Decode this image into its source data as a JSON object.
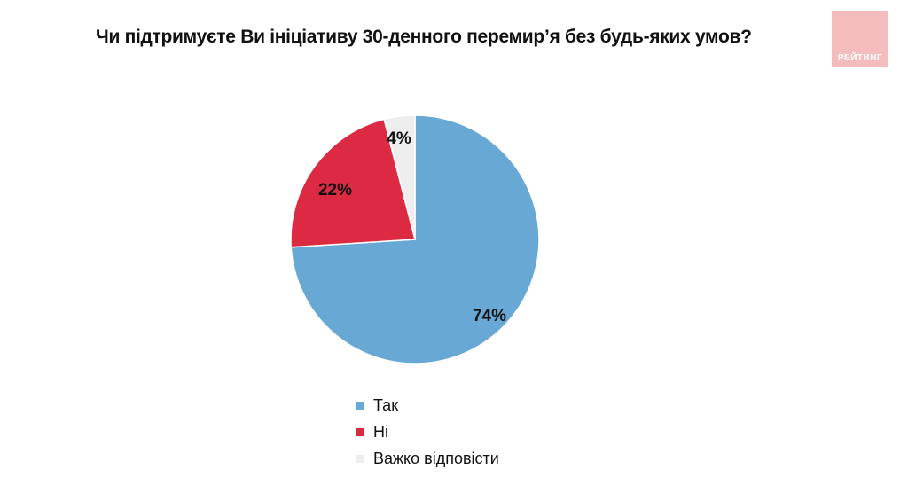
{
  "logo": {
    "text": "РЕЙТИНГ",
    "color": "#f4bcbc"
  },
  "chart_data": {
    "type": "pie",
    "title": "Чи підтримуєте Ви ініціативу 30-денного перемир’я без будь-яких умов?",
    "slices": [
      {
        "label": "Так",
        "value": 74,
        "display": "74%",
        "color": "#67a8d4"
      },
      {
        "label": "Ні",
        "value": 22,
        "display": "22%",
        "color": "#dd2a43"
      },
      {
        "label": "Важко відповісти",
        "value": 4,
        "display": "4%",
        "color": "#eeeeee"
      }
    ],
    "legend_position": "bottom"
  }
}
